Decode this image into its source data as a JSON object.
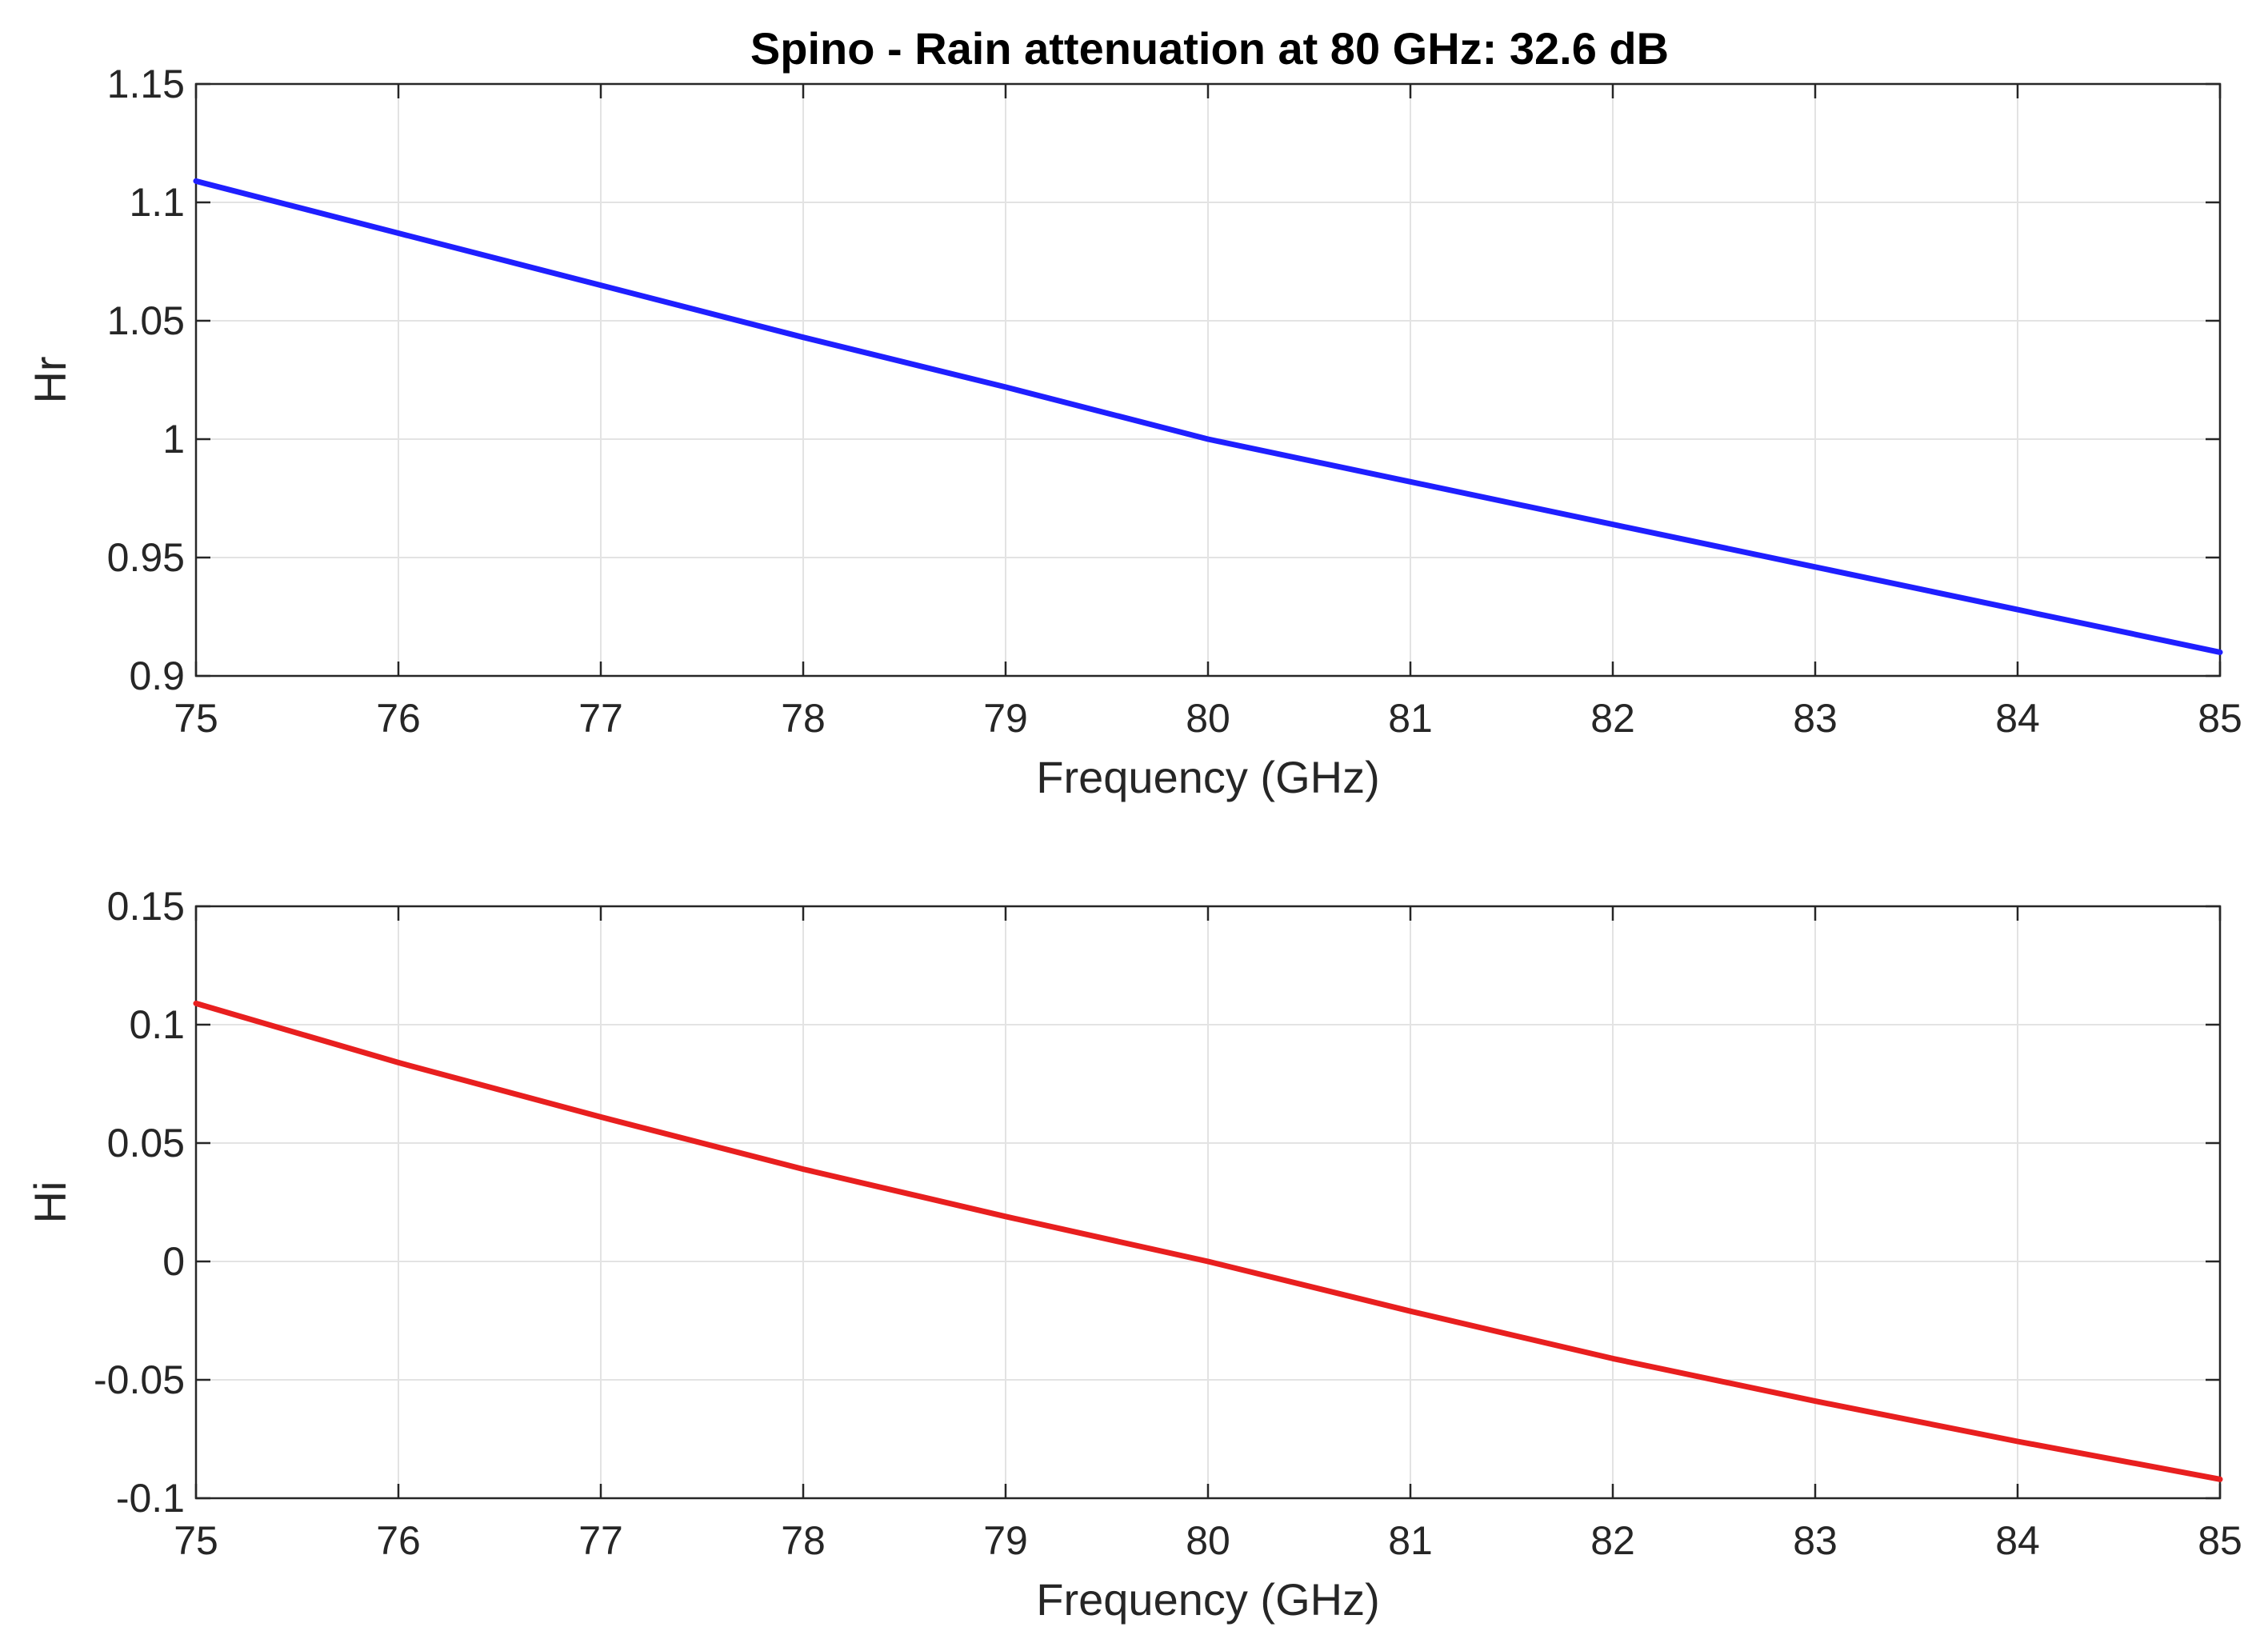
{
  "chart_data": [
    {
      "type": "line",
      "title": "Spino - Rain attenuation at 80 GHz: 32.6 dB",
      "xlabel": "Frequency (GHz)",
      "ylabel": "Hr",
      "xlim": [
        75,
        85
      ],
      "ylim": [
        0.9,
        1.15
      ],
      "xticks": [
        75,
        76,
        77,
        78,
        79,
        80,
        81,
        82,
        83,
        84,
        85
      ],
      "yticks": [
        0.9,
        0.95,
        1,
        1.05,
        1.1,
        1.15
      ],
      "ytick_labels": [
        "0.9",
        "0.95",
        "1",
        "1.05",
        "1.1",
        "1.15"
      ],
      "grid": true,
      "series": [
        {
          "name": "Hr",
          "color": "#1f1fff",
          "x": [
            75,
            76,
            77,
            78,
            79,
            80,
            81,
            82,
            83,
            84,
            85
          ],
          "y": [
            1.109,
            1.087,
            1.065,
            1.043,
            1.022,
            1.0,
            0.982,
            0.964,
            0.946,
            0.928,
            0.91
          ]
        }
      ]
    },
    {
      "type": "line",
      "title": "",
      "xlabel": "Frequency (GHz)",
      "ylabel": "Hi",
      "xlim": [
        75,
        85
      ],
      "ylim": [
        -0.1,
        0.15
      ],
      "xticks": [
        75,
        76,
        77,
        78,
        79,
        80,
        81,
        82,
        83,
        84,
        85
      ],
      "yticks": [
        -0.1,
        -0.05,
        0,
        0.05,
        0.1,
        0.15
      ],
      "ytick_labels": [
        "-0.1",
        "-0.05",
        "0",
        "0.05",
        "0.1",
        "0.15"
      ],
      "grid": true,
      "series": [
        {
          "name": "Hi",
          "color": "#e81f1f",
          "x": [
            75,
            76,
            77,
            78,
            79,
            80,
            81,
            82,
            83,
            84,
            85
          ],
          "y": [
            0.109,
            0.084,
            0.061,
            0.039,
            0.019,
            0.0,
            -0.021,
            -0.041,
            -0.059,
            -0.076,
            -0.092
          ]
        }
      ]
    }
  ]
}
